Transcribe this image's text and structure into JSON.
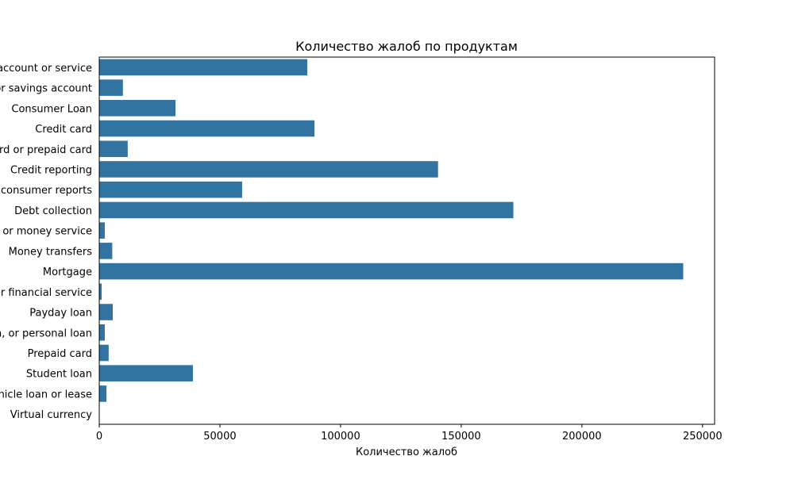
{
  "chart_data": {
    "type": "bar",
    "orientation": "horizontal",
    "title": "Количество жалоб по продуктам",
    "xlabel": "Количество жалоб",
    "ylabel": "",
    "xlim": [
      0,
      255000
    ],
    "xticks": [
      0,
      50000,
      100000,
      150000,
      200000,
      250000
    ],
    "grid": false,
    "bar_color": "#3274a1",
    "categories": [
      "Bank account or service",
      "Checking or savings account",
      "Consumer Loan",
      "Credit card",
      "Credit card or prepaid card",
      "Credit reporting",
      "Credit reporting, credit repair services, or other personal consumer reports",
      "Debt collection",
      "Money transfer, virtual currency, or money service",
      "Money transfers",
      "Mortgage",
      "Other financial service",
      "Payday loan",
      "Payday loan, title loan, or personal loan",
      "Prepaid card",
      "Student loan",
      "Vehicle loan or lease",
      "Virtual currency"
    ],
    "values": [
      86200,
      9800,
      31600,
      89200,
      11800,
      140400,
      59200,
      171600,
      2300,
      5400,
      242000,
      1000,
      5600,
      2300,
      3900,
      38800,
      3000,
      20
    ]
  }
}
